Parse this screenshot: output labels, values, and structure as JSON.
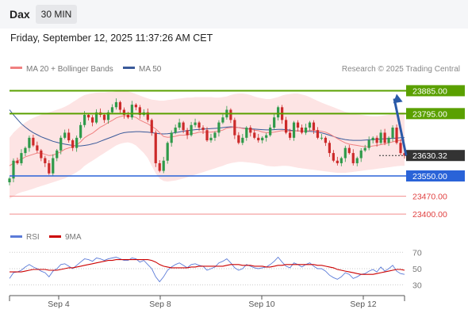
{
  "header": {
    "instrument": "Dax",
    "timeframe": "30 MIN",
    "datetime": "Friday, September 12, 2025 11:37:26 AM CET"
  },
  "legend": {
    "ma20_label": "MA 20 + Bollinger Bands",
    "ma50_label": "MA 50",
    "credit": "Research © 2025 Trading Central",
    "rsi_label": "RSI",
    "rsi_ma_label": "9MA"
  },
  "colors": {
    "ma20": "#f08080",
    "ma50": "#3a5a9a",
    "bollinger_fill": "#fde4e4",
    "resistance": "#5aa000",
    "pivot": "#2a63d8",
    "support": "#f28c8c",
    "rsi": "#5b7bd8",
    "rsi_ma": "#cc0000",
    "arrow": "#2a5aa8",
    "last_price": "#333333"
  },
  "chart_data": [
    {
      "type": "candlestick",
      "title": "",
      "x_ticks": [
        "Sep 4",
        "Sep 8",
        "Sep 10",
        "Sep 12"
      ],
      "ylim": [
        23360,
        23930
      ],
      "last_price": 23630.32,
      "levels": [
        {
          "value": 23885.0,
          "label": "23885.00",
          "kind": "resistance"
        },
        {
          "value": 23795.0,
          "label": "23795.00",
          "kind": "resistance"
        },
        {
          "value": 23630.32,
          "label": "23630.32",
          "kind": "last"
        },
        {
          "value": 23550.0,
          "label": "23550.00",
          "kind": "pivot"
        },
        {
          "value": 23470.0,
          "label": "23470.00",
          "kind": "support"
        },
        {
          "value": 23400.0,
          "label": "23400.00",
          "kind": "support"
        }
      ],
      "close": [
        23540,
        23610,
        23600,
        23640,
        23660,
        23700,
        23670,
        23650,
        23620,
        23600,
        23560,
        23620,
        23650,
        23700,
        23720,
        23690,
        23660,
        23700,
        23750,
        23790,
        23780,
        23760,
        23800,
        23790,
        23770,
        23800,
        23820,
        23840,
        23810,
        23790,
        23780,
        23830,
        23820,
        23790,
        23800,
        23770,
        23720,
        23600,
        23570,
        23610,
        23680,
        23720,
        23740,
        23760,
        23730,
        23710,
        23750,
        23760,
        23740,
        23730,
        23690,
        23700,
        23720,
        23760,
        23780,
        23810,
        23770,
        23710,
        23680,
        23700,
        23740,
        23720,
        23700,
        23690,
        23700,
        23710,
        23740,
        23780,
        23820,
        23770,
        23720,
        23700,
        23760,
        23740,
        23720,
        23740,
        23760,
        23730,
        23700,
        23700,
        23680,
        23640,
        23610,
        23600,
        23620,
        23660,
        23640,
        23600,
        23620,
        23650,
        23660,
        23690,
        23700,
        23680,
        23720,
        23680,
        23700,
        23740,
        23680,
        23640,
        23630
      ],
      "ma20": [
        23590,
        23600,
        23610,
        23615,
        23625,
        23630,
        23635,
        23640,
        23640,
        23635,
        23630,
        23632,
        23638,
        23645,
        23655,
        23660,
        23665,
        23672,
        23684,
        23700,
        23710,
        23718,
        23730,
        23742,
        23750,
        23760,
        23768,
        23778,
        23783,
        23787,
        23786,
        23784,
        23780,
        23770,
        23762,
        23755,
        23745,
        23735,
        23720,
        23705,
        23702,
        23703,
        23706,
        23710,
        23710,
        23712,
        23716,
        23718,
        23722,
        23722,
        23722,
        23722,
        23724,
        23726,
        23730,
        23738,
        23740,
        23742,
        23740,
        23737,
        23734,
        23734,
        23730,
        23728,
        23723,
        23720,
        23720,
        23722,
        23725,
        23728,
        23727,
        23726,
        23727,
        23727,
        23726,
        23727,
        23728,
        23730,
        23728,
        23725,
        23722,
        23715,
        23706,
        23697,
        23688,
        23680,
        23675,
        23672,
        23670,
        23667,
        23665,
        23665,
        23668,
        23670,
        23673,
        23676,
        23680,
        23684,
        23688,
        23690,
        23692
      ],
      "ma50": [
        23810,
        23790,
        23772,
        23755,
        23742,
        23730,
        23720,
        23712,
        23704,
        23698,
        23692,
        23686,
        23682,
        23678,
        23675,
        23672,
        23670,
        23668,
        23668,
        23670,
        23672,
        23676,
        23680,
        23686,
        23692,
        23698,
        23704,
        23710,
        23716,
        23720,
        23722,
        23723,
        23724,
        23724,
        23723,
        23722,
        23720,
        23718,
        23716,
        23715,
        23716,
        23718,
        23720,
        23723,
        23726,
        23728,
        23730,
        23732,
        23733,
        23734,
        23735,
        23736,
        23737,
        23738,
        23740,
        23742,
        23743,
        23742,
        23740,
        23738,
        23736,
        23735,
        23734,
        23733,
        23732,
        23731,
        23731,
        23732,
        23733,
        23733,
        23732,
        23730,
        23728,
        23727,
        23726,
        23725,
        23725,
        23724,
        23722,
        23719,
        23715,
        23710,
        23705,
        23700,
        23696,
        23693,
        23691,
        23690,
        23690,
        23690,
        23691,
        23692,
        23693,
        23694,
        23695,
        23696,
        23697,
        23698,
        23699,
        23700,
        23700
      ],
      "bb_upper": [
        23700,
        23720,
        23735,
        23748,
        23760,
        23770,
        23778,
        23785,
        23790,
        23795,
        23800,
        23805,
        23810,
        23815,
        23822,
        23830,
        23840,
        23850,
        23860,
        23868,
        23872,
        23875,
        23877,
        23878,
        23878,
        23880,
        23880,
        23882,
        23884,
        23884,
        23882,
        23878,
        23872,
        23866,
        23860,
        23855,
        23850,
        23848,
        23846,
        23846,
        23848,
        23850,
        23852,
        23854,
        23856,
        23858,
        23858,
        23860,
        23860,
        23860,
        23860,
        23860,
        23858,
        23858,
        23860,
        23862,
        23868,
        23872,
        23874,
        23874,
        23872,
        23868,
        23862,
        23858,
        23855,
        23852,
        23852,
        23856,
        23860,
        23866,
        23870,
        23872,
        23874,
        23874,
        23870,
        23866,
        23860,
        23852,
        23845,
        23838,
        23832,
        23826,
        23820,
        23814,
        23808,
        23802,
        23798,
        23795,
        23792,
        23790,
        23788,
        23786,
        23785,
        23785,
        23786,
        23788,
        23790,
        23794,
        23798,
        23800,
        23800
      ],
      "bb_lower": [
        23460,
        23470,
        23480,
        23486,
        23490,
        23495,
        23500,
        23505,
        23510,
        23515,
        23520,
        23525,
        23530,
        23535,
        23540,
        23548,
        23556,
        23565,
        23575,
        23590,
        23600,
        23610,
        23620,
        23630,
        23640,
        23650,
        23660,
        23670,
        23676,
        23680,
        23682,
        23678,
        23670,
        23655,
        23640,
        23620,
        23590,
        23560,
        23540,
        23530,
        23528,
        23530,
        23532,
        23536,
        23540,
        23545,
        23550,
        23555,
        23560,
        23565,
        23570,
        23575,
        23580,
        23585,
        23590,
        23596,
        23600,
        23603,
        23605,
        23605,
        23604,
        23602,
        23600,
        23598,
        23595,
        23590,
        23588,
        23587,
        23588,
        23590,
        23590,
        23588,
        23585,
        23582,
        23580,
        23578,
        23576,
        23574,
        23572,
        23570,
        23568,
        23566,
        23564,
        23562,
        23562,
        23562,
        23564,
        23566,
        23568,
        23570,
        23572,
        23574,
        23576,
        23578,
        23580,
        23582,
        23584,
        23586,
        23588,
        23590,
        23590
      ]
    },
    {
      "type": "line",
      "title": "RSI",
      "x_ticks": [
        "Sep 4",
        "Sep 8",
        "Sep 10",
        "Sep 12"
      ],
      "y_ticks": [
        70,
        50,
        30
      ],
      "ylim": [
        20,
        78
      ],
      "series": [
        {
          "name": "RSI",
          "values": [
            38,
            45,
            46,
            48,
            52,
            55,
            52,
            50,
            47,
            45,
            40,
            47,
            50,
            55,
            56,
            53,
            50,
            54,
            58,
            62,
            61,
            59,
            63,
            62,
            60,
            62,
            63,
            64,
            62,
            60,
            60,
            63,
            62,
            58,
            60,
            55,
            50,
            40,
            34,
            40,
            48,
            52,
            55,
            57,
            54,
            51,
            55,
            56,
            54,
            53,
            48,
            50,
            52,
            57,
            59,
            62,
            57,
            51,
            48,
            50,
            55,
            53,
            51,
            50,
            51,
            52,
            55,
            59,
            64,
            58,
            53,
            51,
            57,
            55,
            52,
            55,
            57,
            53,
            50,
            50,
            47,
            42,
            39,
            37,
            40,
            45,
            43,
            38,
            40,
            43,
            44,
            47,
            49,
            46,
            52,
            47,
            50,
            54,
            47,
            44,
            43
          ]
        },
        {
          "name": "9MA",
          "values": [
            46,
            46,
            46,
            46,
            47,
            48,
            49,
            49,
            49,
            49,
            48,
            48,
            48,
            49,
            50,
            51,
            51,
            52,
            53,
            54,
            55,
            56,
            57,
            58,
            59,
            60,
            60,
            61,
            61,
            61,
            61,
            61,
            61,
            61,
            61,
            61,
            60,
            58,
            55,
            53,
            52,
            51,
            51,
            51,
            51,
            51,
            52,
            52,
            53,
            53,
            53,
            53,
            53,
            53,
            53,
            54,
            55,
            55,
            55,
            54,
            54,
            54,
            53,
            53,
            53,
            52,
            52,
            53,
            54,
            54,
            55,
            55,
            55,
            55,
            55,
            55,
            55,
            55,
            54,
            54,
            53,
            52,
            51,
            49,
            48,
            47,
            46,
            45,
            44,
            43,
            43,
            43,
            43,
            44,
            45,
            46,
            47,
            48,
            49,
            49,
            48
          ]
        }
      ]
    }
  ]
}
